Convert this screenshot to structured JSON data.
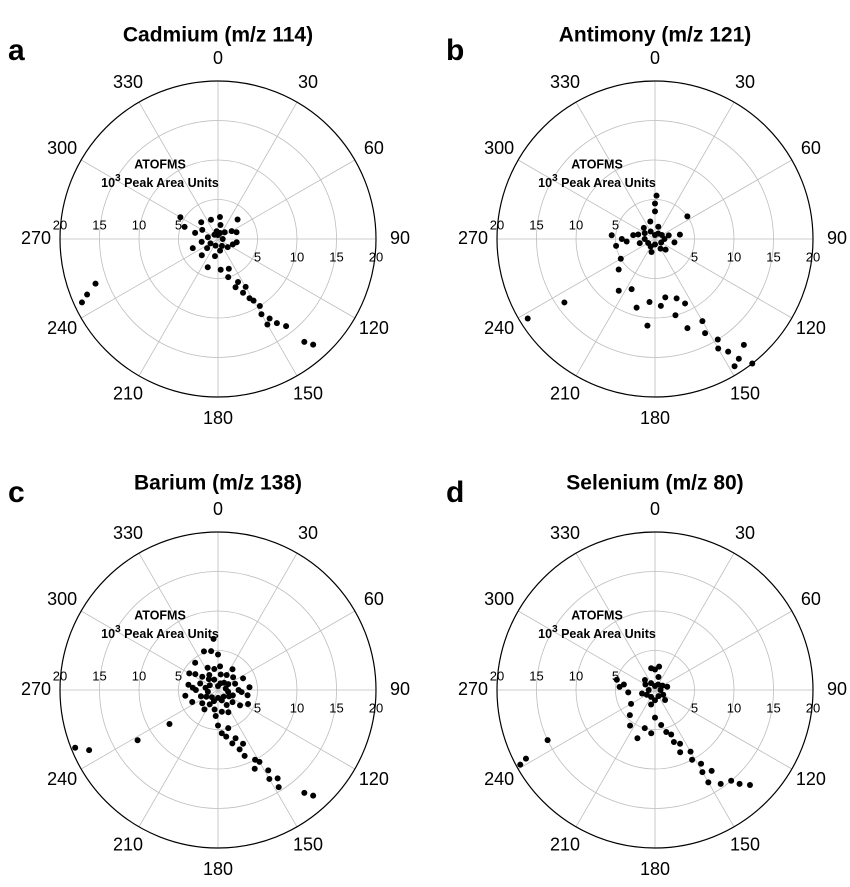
{
  "chart_data": [
    {
      "type": "scatter",
      "subtype": "polar",
      "panel": "a",
      "title": "Cadmium (m/z 114)",
      "unit_label_line1": "ATOFMS",
      "unit_label_line2": "10",
      "unit_label_sup": "3",
      "unit_label_line2_rest": " Peak Area Units",
      "angle_ticks": [
        "0",
        "30",
        "60",
        "90",
        "120",
        "150",
        "180",
        "210",
        "240",
        "270",
        "300",
        "330"
      ],
      "radial_ticks_right": [
        "5",
        "10",
        "15",
        "20"
      ],
      "radial_ticks_left": [
        "5",
        "10",
        "15",
        "20"
      ],
      "radial_range": [
        0,
        20
      ],
      "angle_direction": "clockwise-from-north",
      "points": [
        [
          0,
          0.5
        ],
        [
          20,
          0.8
        ],
        [
          45,
          1.2
        ],
        [
          90,
          0.6
        ],
        [
          150,
          1.0
        ],
        [
          170,
          1.5
        ],
        [
          200,
          0.9
        ],
        [
          240,
          1.1
        ],
        [
          280,
          1.3
        ],
        [
          320,
          0.7
        ],
        [
          350,
          1.0
        ],
        [
          10,
          1.8
        ],
        [
          60,
          2.0
        ],
        [
          100,
          2.4
        ],
        [
          130,
          1.6
        ],
        [
          190,
          2.2
        ],
        [
          230,
          1.8
        ],
        [
          260,
          2.1
        ],
        [
          300,
          2.3
        ],
        [
          340,
          2.6
        ],
        [
          5,
          2.8
        ],
        [
          70,
          2.5
        ],
        [
          110,
          2.0
        ],
        [
          225,
          2.9
        ],
        [
          285,
          3.0
        ],
        [
          315,
          3.0
        ],
        [
          250,
          3.4
        ],
        [
          45,
          3.5
        ],
        [
          200,
          3.8
        ],
        [
          175,
          3.9
        ],
        [
          160,
          4.0
        ],
        [
          165,
          5.0
        ],
        [
          155,
          6.0
        ],
        [
          160,
          6.5
        ],
        [
          150,
          7.0
        ],
        [
          155,
          7.5
        ],
        [
          152,
          8.5
        ],
        [
          150,
          9.0
        ],
        [
          148,
          10.0
        ],
        [
          150,
          11.0
        ],
        [
          147,
          12.0
        ],
        [
          150,
          12.5
        ],
        [
          145,
          13.0
        ],
        [
          142,
          14.0
        ],
        [
          140,
          17.0
        ],
        [
          138,
          18.0
        ],
        [
          300,
          5.5
        ],
        [
          290,
          4.5
        ],
        [
          250,
          16.5
        ],
        [
          247,
          18.0
        ],
        [
          245,
          19.0
        ]
      ]
    },
    {
      "type": "scatter",
      "subtype": "polar",
      "panel": "b",
      "title": "Antimony (m/z 121)",
      "unit_label_line1": "ATOFMS",
      "unit_label_line2": "10",
      "unit_label_sup": "3",
      "unit_label_line2_rest": " Peak Area Units",
      "angle_ticks": [
        "0",
        "30",
        "60",
        "90",
        "120",
        "150",
        "180",
        "210",
        "240",
        "270",
        "300",
        "330"
      ],
      "radial_ticks_right": [
        "5",
        "10",
        "15",
        "20"
      ],
      "radial_ticks_left": [
        "5",
        "10",
        "15",
        "20"
      ],
      "radial_range": [
        0,
        20
      ],
      "angle_direction": "clockwise-from-north",
      "points": [
        [
          0,
          0.5
        ],
        [
          30,
          0.8
        ],
        [
          60,
          1.0
        ],
        [
          90,
          1.2
        ],
        [
          120,
          0.9
        ],
        [
          150,
          1.4
        ],
        [
          180,
          0.7
        ],
        [
          210,
          1.1
        ],
        [
          240,
          1.0
        ],
        [
          270,
          1.3
        ],
        [
          300,
          1.5
        ],
        [
          330,
          1.1
        ],
        [
          15,
          1.6
        ],
        [
          75,
          1.8
        ],
        [
          135,
          1.9
        ],
        [
          195,
          1.7
        ],
        [
          255,
          2.0
        ],
        [
          285,
          2.2
        ],
        [
          315,
          2.0
        ],
        [
          345,
          2.3
        ],
        [
          0,
          3.5
        ],
        [
          0,
          4.5
        ],
        [
          2,
          5.5
        ],
        [
          55,
          5.0
        ],
        [
          80,
          3.2
        ],
        [
          100,
          2.5
        ],
        [
          275,
          5.5
        ],
        [
          270,
          4.2
        ],
        [
          265,
          3.6
        ],
        [
          260,
          5.0
        ],
        [
          280,
          2.8
        ],
        [
          240,
          5.0
        ],
        [
          230,
          6.0
        ],
        [
          215,
          8.0
        ],
        [
          205,
          7.0
        ],
        [
          195,
          9.0
        ],
        [
          185,
          11.0
        ],
        [
          185,
          8.0
        ],
        [
          175,
          8.5
        ],
        [
          165,
          10.0
        ],
        [
          170,
          7.5
        ],
        [
          160,
          8.0
        ],
        [
          155,
          9.0
        ],
        [
          160,
          12.0
        ],
        [
          150,
          12.0
        ],
        [
          152,
          13.5
        ],
        [
          148,
          15.0
        ],
        [
          150,
          16.0
        ],
        [
          147,
          17.0
        ],
        [
          145,
          18.5
        ],
        [
          148,
          19.0
        ],
        [
          142,
          20.0
        ],
        [
          140,
          17.5
        ],
        [
          235,
          14.0
        ],
        [
          238,
          19.0
        ]
      ]
    },
    {
      "type": "scatter",
      "subtype": "polar",
      "panel": "c",
      "title": "Barium (m/z 138)",
      "unit_label_line1": "ATOFMS",
      "unit_label_line2": "10",
      "unit_label_sup": "3",
      "unit_label_line2_rest": " Peak Area Units",
      "angle_ticks": [
        "0",
        "30",
        "60",
        "90",
        "120",
        "150",
        "180",
        "210",
        "240",
        "270",
        "300",
        "330"
      ],
      "radial_ticks_right": [
        "5",
        "10",
        "15",
        "20"
      ],
      "radial_ticks_left": [
        "5",
        "10",
        "15",
        "20"
      ],
      "radial_range": [
        0,
        20
      ],
      "angle_direction": "clockwise-from-north",
      "points": [
        [
          0,
          0.5
        ],
        [
          20,
          0.9
        ],
        [
          40,
          1.2
        ],
        [
          60,
          1.5
        ],
        [
          80,
          1.0
        ],
        [
          100,
          1.3
        ],
        [
          120,
          1.6
        ],
        [
          140,
          1.1
        ],
        [
          160,
          1.4
        ],
        [
          180,
          1.0
        ],
        [
          200,
          1.5
        ],
        [
          220,
          1.2
        ],
        [
          240,
          1.7
        ],
        [
          260,
          1.3
        ],
        [
          280,
          1.6
        ],
        [
          300,
          1.2
        ],
        [
          320,
          1.8
        ],
        [
          340,
          1.4
        ],
        [
          10,
          2.0
        ],
        [
          30,
          2.2
        ],
        [
          50,
          2.5
        ],
        [
          70,
          2.3
        ],
        [
          90,
          2.6
        ],
        [
          110,
          2.0
        ],
        [
          130,
          2.4
        ],
        [
          150,
          2.2
        ],
        [
          170,
          2.8
        ],
        [
          190,
          2.5
        ],
        [
          210,
          2.1
        ],
        [
          230,
          2.6
        ],
        [
          250,
          2.3
        ],
        [
          270,
          2.8
        ],
        [
          290,
          2.4
        ],
        [
          310,
          2.6
        ],
        [
          330,
          2.2
        ],
        [
          350,
          2.7
        ],
        [
          5,
          3.0
        ],
        [
          35,
          3.2
        ],
        [
          65,
          3.5
        ],
        [
          95,
          3.0
        ],
        [
          125,
          3.4
        ],
        [
          155,
          3.1
        ],
        [
          185,
          3.3
        ],
        [
          215,
          3.0
        ],
        [
          245,
          3.6
        ],
        [
          275,
          3.2
        ],
        [
          305,
          3.5
        ],
        [
          335,
          3.1
        ],
        [
          0,
          4.5
        ],
        [
          350,
          5.0
        ],
        [
          355,
          6.5
        ],
        [
          340,
          5.2
        ],
        [
          320,
          4.5
        ],
        [
          300,
          4.2
        ],
        [
          280,
          3.8
        ],
        [
          260,
          4.2
        ],
        [
          85,
          4.0
        ],
        [
          100,
          3.8
        ],
        [
          115,
          4.2
        ],
        [
          180,
          4.5
        ],
        [
          175,
          5.5
        ],
        [
          170,
          6.0
        ],
        [
          165,
          5.0
        ],
        [
          160,
          6.5
        ],
        [
          165,
          7.0
        ],
        [
          160,
          8.0
        ],
        [
          155,
          7.5
        ],
        [
          158,
          9.0
        ],
        [
          152,
          10.0
        ],
        [
          150,
          10.5
        ],
        [
          155,
          11.0
        ],
        [
          148,
          12.0
        ],
        [
          150,
          13.0
        ],
        [
          146,
          13.5
        ],
        [
          148,
          14.5
        ],
        [
          140,
          17.0
        ],
        [
          138,
          18.0
        ],
        [
          235,
          7.5
        ],
        [
          238,
          12.0
        ],
        [
          245,
          18.0
        ],
        [
          248,
          19.5
        ]
      ]
    },
    {
      "type": "scatter",
      "subtype": "polar",
      "panel": "d",
      "title": "Selenium (m/z 80)",
      "unit_label_line1": "ATOFMS",
      "unit_label_line2": "10",
      "unit_label_sup": "3",
      "unit_label_line2_rest": " Peak Area Units",
      "angle_ticks": [
        "0",
        "30",
        "60",
        "90",
        "120",
        "150",
        "180",
        "210",
        "240",
        "270",
        "300",
        "330"
      ],
      "radial_ticks_right": [
        "5",
        "10",
        "15",
        "20"
      ],
      "radial_ticks_left": [
        "5",
        "10",
        "15",
        "20"
      ],
      "radial_range": [
        0,
        20
      ],
      "angle_direction": "clockwise-from-north",
      "points": [
        [
          0,
          0.5
        ],
        [
          30,
          0.8
        ],
        [
          60,
          1.1
        ],
        [
          90,
          0.7
        ],
        [
          120,
          1.2
        ],
        [
          150,
          0.9
        ],
        [
          180,
          1.3
        ],
        [
          210,
          1.0
        ],
        [
          240,
          1.2
        ],
        [
          270,
          0.8
        ],
        [
          300,
          1.4
        ],
        [
          330,
          1.0
        ],
        [
          15,
          1.7
        ],
        [
          75,
          1.6
        ],
        [
          135,
          1.8
        ],
        [
          195,
          1.9
        ],
        [
          255,
          1.7
        ],
        [
          315,
          1.8
        ],
        [
          0,
          2.6
        ],
        [
          10,
          3.0
        ],
        [
          350,
          2.8
        ],
        [
          280,
          4.0
        ],
        [
          285,
          5.0
        ],
        [
          275,
          4.5
        ],
        [
          265,
          3.4
        ],
        [
          240,
          3.5
        ],
        [
          225,
          4.5
        ],
        [
          215,
          5.5
        ],
        [
          200,
          6.5
        ],
        [
          195,
          5.0
        ],
        [
          185,
          5.5
        ],
        [
          180,
          3.5
        ],
        [
          170,
          4.5
        ],
        [
          165,
          5.5
        ],
        [
          160,
          6.0
        ],
        [
          160,
          7.0
        ],
        [
          155,
          7.5
        ],
        [
          158,
          8.5
        ],
        [
          150,
          9.0
        ],
        [
          152,
          10.0
        ],
        [
          148,
          11.0
        ],
        [
          150,
          12.0
        ],
        [
          145,
          12.5
        ],
        [
          150,
          13.5
        ],
        [
          145,
          14.5
        ],
        [
          140,
          15.0
        ],
        [
          138,
          16.0
        ],
        [
          135,
          17.0
        ],
        [
          245,
          15.0
        ],
        [
          242,
          18.5
        ],
        [
          241,
          19.5
        ]
      ]
    }
  ]
}
